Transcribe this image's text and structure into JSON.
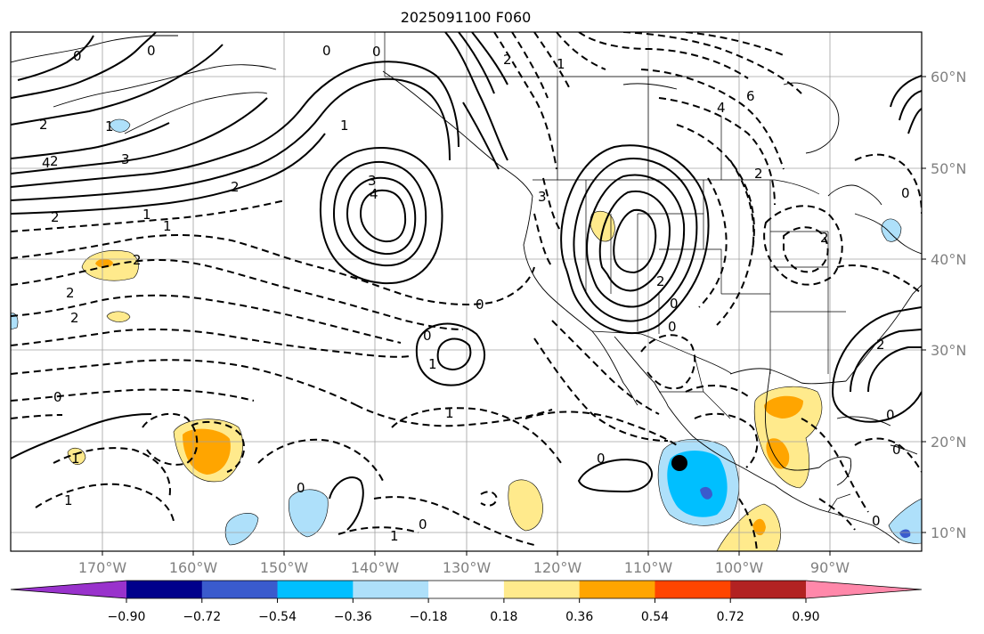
{
  "title": "2025091100 F060",
  "lon_labels": [
    "170°W",
    "160°W",
    "150°W",
    "140°W",
    "130°W",
    "120°W",
    "110°W",
    "100°W",
    "90°W"
  ],
  "lat_labels": [
    "60°N",
    "50°N",
    "40°N",
    "30°N",
    "20°N",
    "10°N"
  ],
  "colorbar": {
    "colors": [
      "#9932cc",
      "#00008b",
      "#3a5bcd",
      "#00bfff",
      "#aee0fa",
      "#ffffff",
      "#ffea8c",
      "#ffa500",
      "#ff4500",
      "#b22222",
      "#ff88aa"
    ],
    "tick_labels": [
      "−0.90",
      "−0.72",
      "−0.54",
      "−0.36",
      "−0.18",
      "0.18",
      "0.36",
      "0.54",
      "0.72",
      "0.90"
    ]
  },
  "contour_labels": [
    "0",
    "0",
    "0",
    "2",
    "1",
    "2",
    "4",
    "3",
    "2",
    "1",
    "2",
    "3",
    "4",
    "1",
    "2",
    "2",
    "2",
    "1",
    "1",
    "0",
    "0",
    "1",
    "1",
    "0",
    "0",
    "1",
    "1",
    "0",
    "0",
    "6",
    "4",
    "2",
    "3",
    "2",
    "2",
    "0",
    "0",
    "1",
    "0",
    "0",
    "0",
    "2",
    "2",
    "0",
    "0"
  ],
  "marker": {
    "lon": -106.5,
    "lat": 17.5
  }
}
